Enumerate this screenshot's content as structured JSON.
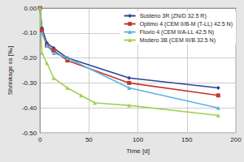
{
  "chart_data": {
    "type": "line",
    "xlabel": "Time [d]",
    "ylabel": "Shrinkage εs [‰]",
    "xlim": [
      0,
      200
    ],
    "xticks": [
      0,
      50,
      100,
      150,
      200
    ],
    "ylim": [
      -0.5,
      0
    ],
    "yticks": [
      {
        "value": -0.5,
        "label": "-0.50"
      },
      {
        "value": -0.4,
        "label": "-0.40"
      },
      {
        "value": -0.3,
        "label": "-0.30"
      },
      {
        "value": -0.2,
        "label": "-0.20"
      },
      {
        "value": -0.1,
        "label": "-0.10"
      },
      {
        "value": 0,
        "label": "0.00"
      }
    ],
    "grid": true,
    "legend": "upper right",
    "series": [
      {
        "name": "Susteno 3R (ZN/D 32.5 R)",
        "color": "#2b4595",
        "marker": "diamond",
        "x": [
          0,
          2,
          7,
          14,
          28,
          91,
          182
        ],
        "values": [
          0,
          -0.08,
          -0.14,
          -0.16,
          -0.2,
          -0.28,
          -0.32
        ]
      },
      {
        "name": "Optimo 4 (CEM II/B-M (T-LL) 42.5 N)",
        "color": "#c0392b",
        "marker": "square",
        "x": [
          0,
          2,
          7,
          14,
          28,
          91,
          182
        ],
        "values": [
          0,
          -0.09,
          -0.15,
          -0.17,
          -0.21,
          -0.3,
          -0.35
        ]
      },
      {
        "name": "Fluvio 4 (CEM II/A-LL 42.5 N)",
        "color": "#5ab4e5",
        "marker": "triangle",
        "x": [
          0,
          2,
          7,
          14,
          28,
          91,
          182
        ],
        "values": [
          0,
          -0.1,
          -0.15,
          -0.18,
          -0.2,
          -0.32,
          -0.4
        ]
      },
      {
        "name": "Modero 3B (CEM III/B 32.5 N)",
        "color": "#a5cf55",
        "marker": "triangle",
        "x": [
          0,
          2,
          7,
          14,
          28,
          42,
          56,
          91,
          182
        ],
        "values": [
          0,
          -0.18,
          -0.22,
          -0.28,
          -0.32,
          -0.35,
          -0.38,
          -0.39,
          -0.43
        ]
      }
    ]
  }
}
